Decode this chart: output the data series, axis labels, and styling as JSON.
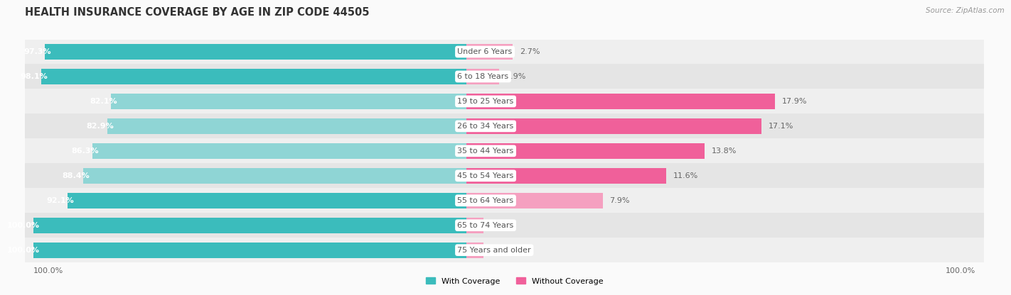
{
  "title": "HEALTH INSURANCE COVERAGE BY AGE IN ZIP CODE 44505",
  "source": "Source: ZipAtlas.com",
  "categories": [
    "Under 6 Years",
    "6 to 18 Years",
    "19 to 25 Years",
    "26 to 34 Years",
    "35 to 44 Years",
    "45 to 54 Years",
    "55 to 64 Years",
    "65 to 74 Years",
    "75 Years and older"
  ],
  "with_coverage": [
    97.3,
    98.1,
    82.1,
    82.9,
    86.3,
    88.4,
    92.1,
    100.0,
    100.0
  ],
  "without_coverage": [
    2.7,
    1.9,
    17.9,
    17.1,
    13.8,
    11.6,
    7.9,
    0.0,
    0.0
  ],
  "color_with_dark": "#3BBCBC",
  "color_with_light": "#8FD5D5",
  "color_without_dark": "#F0609A",
  "color_without_light": "#F5A0C0",
  "row_bg_even": "#EFEFEF",
  "row_bg_odd": "#E5E5E5",
  "bg_color": "#FAFAFA",
  "title_fontsize": 10.5,
  "label_fontsize": 8.0,
  "bar_label_fontsize": 8.0,
  "legend_with": "With Coverage",
  "legend_without": "Without Coverage",
  "x_left_label": "100.0%",
  "x_right_label": "100.0%"
}
